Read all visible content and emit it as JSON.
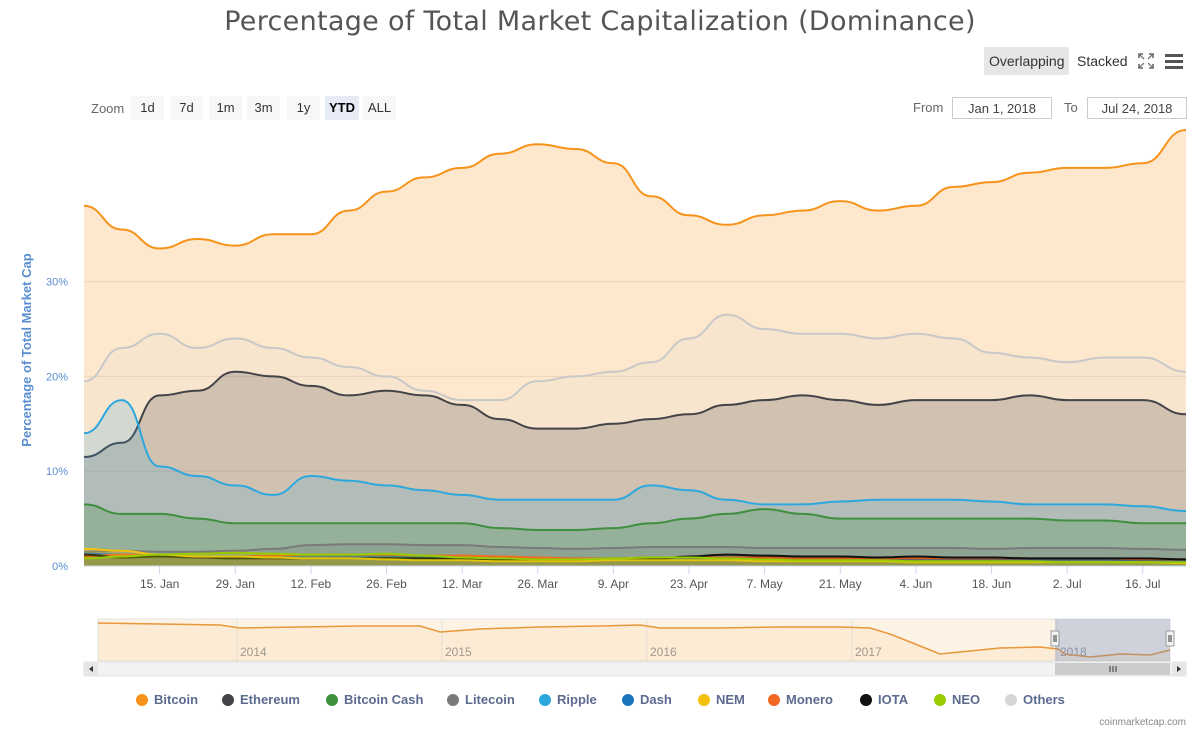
{
  "toolbar": {
    "overlapping_label": "Overlapping",
    "stacked_label": "Stacked",
    "fullscreen_icon": "fullscreen-icon",
    "menu_icon": "menu-icon"
  },
  "zoom": {
    "label": "Zoom",
    "buttons": [
      "1d",
      "7d",
      "1m",
      "3m",
      "1y",
      "YTD",
      "ALL"
    ],
    "active": "YTD"
  },
  "range": {
    "from_label": "From",
    "from_value": "Jan 1, 2018",
    "to_label": "To",
    "to_value": "Jul 24, 2018"
  },
  "credit": "coinmarketcap.com",
  "colors": {
    "bitcoin": "#f7931a",
    "ethereum": "#434348",
    "bitcoin_cash": "#3f8f3f",
    "litecoin": "#7a7a7a",
    "ripple": "#2ca8de",
    "dash": "#1c75bc",
    "nem": "#f4c20d",
    "monero": "#f26822",
    "iota": "#111111",
    "neo": "#99cc00",
    "others": "#d6d6d6"
  },
  "chart_data": {
    "type": "area",
    "title": "Percentage of Total Market Capitalization (Dominance)",
    "ylabel": "Percentage of Total Market Cap",
    "xlabel": "",
    "ylim": [
      0,
      46
    ],
    "yticks": [
      0,
      10,
      20,
      30
    ],
    "ytick_labels": [
      "0%",
      "10%",
      "20%",
      "30%"
    ],
    "grid": true,
    "legend_position": "bottom",
    "x_range": [
      "2018-01-01",
      "2018-07-24"
    ],
    "x": [
      "2018-01-01",
      "2018-01-08",
      "2018-01-15",
      "2018-01-22",
      "2018-01-29",
      "2018-02-05",
      "2018-02-12",
      "2018-02-19",
      "2018-02-26",
      "2018-03-05",
      "2018-03-12",
      "2018-03-19",
      "2018-03-26",
      "2018-04-02",
      "2018-04-09",
      "2018-04-16",
      "2018-04-23",
      "2018-04-30",
      "2018-05-07",
      "2018-05-14",
      "2018-05-21",
      "2018-05-28",
      "2018-06-04",
      "2018-06-11",
      "2018-06-18",
      "2018-06-25",
      "2018-07-02",
      "2018-07-09",
      "2018-07-16",
      "2018-07-24"
    ],
    "xtick_labels": [
      "15. Jan",
      "29. Jan",
      "12. Feb",
      "26. Feb",
      "12. Mar",
      "26. Mar",
      "9. Apr",
      "23. Apr",
      "7. May",
      "21. May",
      "4. Jun",
      "18. Jun",
      "2. Jul",
      "16. Jul"
    ],
    "xtick_dates": [
      "2018-01-15",
      "2018-01-29",
      "2018-02-12",
      "2018-02-26",
      "2018-03-12",
      "2018-03-26",
      "2018-04-09",
      "2018-04-23",
      "2018-05-07",
      "2018-05-21",
      "2018-06-04",
      "2018-06-18",
      "2018-07-02",
      "2018-07-16"
    ],
    "series": [
      {
        "name": "Bitcoin",
        "values": [
          38.0,
          35.5,
          33.5,
          34.5,
          33.8,
          35.0,
          35.0,
          37.5,
          39.5,
          41.0,
          42.0,
          43.5,
          44.5,
          44.0,
          42.5,
          39.0,
          37.0,
          36.0,
          37.0,
          37.5,
          38.5,
          37.5,
          38.0,
          40.0,
          40.5,
          41.5,
          42.0,
          42.0,
          42.5,
          46.0
        ]
      },
      {
        "name": "Ethereum",
        "values": [
          11.5,
          13.0,
          18.0,
          18.5,
          20.5,
          20.0,
          19.0,
          18.0,
          18.5,
          18.0,
          17.0,
          15.5,
          14.5,
          14.5,
          15.0,
          15.5,
          16.0,
          17.0,
          17.5,
          18.0,
          17.5,
          17.0,
          17.5,
          17.5,
          17.5,
          18.0,
          17.5,
          17.5,
          17.5,
          16.0
        ]
      },
      {
        "name": "Bitcoin Cash",
        "values": [
          6.5,
          5.5,
          5.5,
          5.0,
          4.5,
          4.5,
          4.5,
          4.5,
          4.5,
          4.5,
          4.5,
          4.0,
          3.8,
          3.8,
          4.0,
          4.5,
          5.0,
          5.5,
          6.0,
          5.5,
          5.0,
          5.0,
          5.0,
          5.0,
          5.0,
          5.0,
          4.8,
          4.8,
          4.5,
          4.5
        ]
      },
      {
        "name": "Litecoin",
        "values": [
          1.5,
          1.6,
          1.5,
          1.5,
          1.6,
          1.8,
          2.2,
          2.3,
          2.3,
          2.2,
          2.2,
          2.0,
          1.9,
          1.8,
          1.9,
          2.0,
          2.0,
          2.0,
          1.9,
          1.9,
          1.9,
          1.9,
          1.9,
          1.9,
          1.8,
          1.9,
          1.9,
          1.9,
          1.8,
          1.7
        ]
      },
      {
        "name": "Ripple",
        "values": [
          14.0,
          17.5,
          10.5,
          9.5,
          8.5,
          7.5,
          9.5,
          9.0,
          8.5,
          8.0,
          7.5,
          7.0,
          7.0,
          7.0,
          7.0,
          8.5,
          8.0,
          7.0,
          6.5,
          6.5,
          6.8,
          7.0,
          7.0,
          7.0,
          6.8,
          6.5,
          6.5,
          6.5,
          6.3,
          5.8
        ]
      },
      {
        "name": "Dash",
        "values": [
          1.3,
          1.2,
          1.1,
          1.0,
          1.0,
          1.0,
          1.1,
          1.0,
          1.0,
          0.9,
          0.9,
          0.8,
          0.8,
          0.8,
          0.8,
          0.8,
          0.8,
          0.8,
          0.8,
          0.7,
          0.7,
          0.7,
          0.7,
          0.7,
          0.7,
          0.7,
          0.7,
          0.7,
          0.6,
          0.6
        ]
      },
      {
        "name": "NEM",
        "values": [
          1.8,
          1.6,
          1.2,
          1.0,
          1.0,
          0.9,
          0.8,
          0.8,
          0.7,
          0.6,
          0.6,
          0.5,
          0.5,
          0.5,
          0.6,
          0.6,
          0.6,
          0.6,
          0.5,
          0.5,
          0.5,
          0.5,
          0.4,
          0.4,
          0.4,
          0.4,
          0.4,
          0.4,
          0.4,
          0.3
        ]
      },
      {
        "name": "Monero",
        "values": [
          1.0,
          1.2,
          1.1,
          1.0,
          1.0,
          1.1,
          1.2,
          1.2,
          1.2,
          1.1,
          1.1,
          1.0,
          0.9,
          0.8,
          0.8,
          0.9,
          0.9,
          0.9,
          0.9,
          0.8,
          0.8,
          0.8,
          0.8,
          0.8,
          0.8,
          0.8,
          0.8,
          0.8,
          0.7,
          0.7
        ]
      },
      {
        "name": "IOTA",
        "values": [
          1.2,
          0.9,
          1.0,
          0.9,
          0.8,
          0.8,
          0.8,
          0.8,
          0.8,
          0.8,
          0.7,
          0.6,
          0.6,
          0.6,
          0.7,
          0.7,
          1.0,
          1.2,
          1.1,
          1.0,
          1.0,
          0.9,
          1.0,
          0.9,
          0.9,
          0.8,
          0.8,
          0.8,
          0.8,
          0.7
        ]
      },
      {
        "name": "NEO",
        "values": [
          0.8,
          1.0,
          1.2,
          1.3,
          1.4,
          1.3,
          1.2,
          1.2,
          1.3,
          1.1,
          0.9,
          0.8,
          0.7,
          0.7,
          0.8,
          0.9,
          0.9,
          0.8,
          0.7,
          0.6,
          0.6,
          0.6,
          0.5,
          0.5,
          0.5,
          0.5,
          0.4,
          0.4,
          0.4,
          0.4
        ]
      },
      {
        "name": "Others",
        "values": [
          19.5,
          23.0,
          24.5,
          23.0,
          24.0,
          23.0,
          22.0,
          21.0,
          20.0,
          18.5,
          17.5,
          17.5,
          19.5,
          20.0,
          20.5,
          21.5,
          24.0,
          26.5,
          25.0,
          24.5,
          24.5,
          24.0,
          24.5,
          24.0,
          22.5,
          22.0,
          21.5,
          22.0,
          22.0,
          20.5
        ]
      }
    ],
    "navigator": {
      "year_labels": [
        "2014",
        "2015",
        "2016",
        "2017",
        "2018"
      ]
    }
  }
}
